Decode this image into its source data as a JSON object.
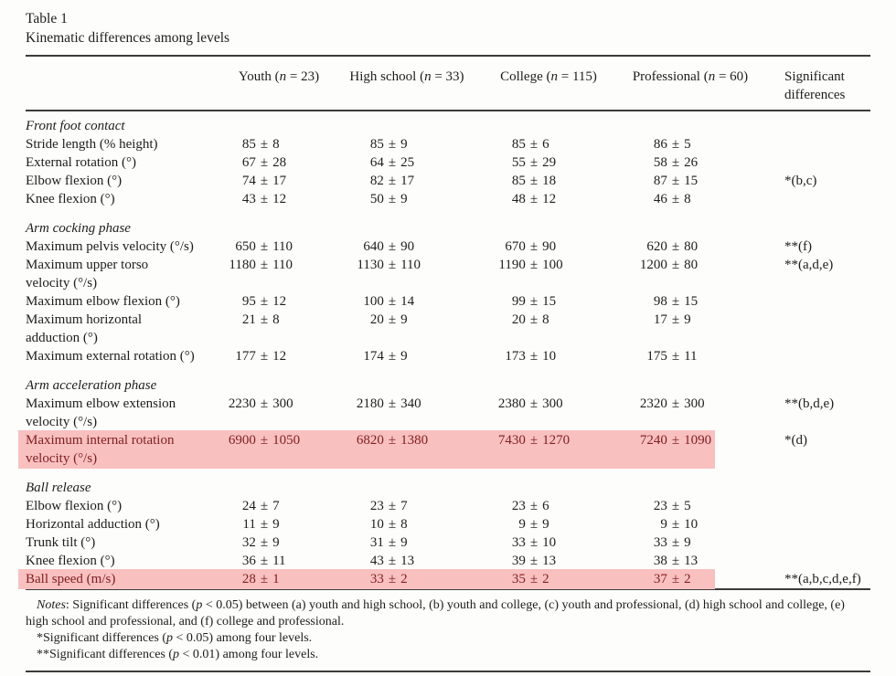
{
  "page": {
    "title_line1": "Table 1",
    "title_line2": "Kinematic differences among levels"
  },
  "colors": {
    "highlight_bg": "#f9c0c0",
    "highlight_text": "#801d1d"
  },
  "table": {
    "plus_minus": "±",
    "columns": [
      [
        {
          "t": "Youth ("
        },
        {
          "t": "n",
          "i": true
        },
        {
          "t": " = 23)"
        }
      ],
      [
        {
          "t": "High school ("
        },
        {
          "t": "n",
          "i": true
        },
        {
          "t": " = 33)"
        }
      ],
      [
        {
          "t": "College ("
        },
        {
          "t": "n",
          "i": true
        },
        {
          "t": " = 115)"
        }
      ],
      [
        {
          "t": "Professional ("
        },
        {
          "t": "n",
          "i": true
        },
        {
          "t": " = 60)"
        }
      ],
      [
        {
          "t": "Significant differences"
        }
      ]
    ],
    "sections": [
      {
        "heading": "Front foot contact",
        "rows": [
          {
            "label": "Stride length (% height)",
            "label2": "",
            "values": [
              [
                "85",
                "8"
              ],
              [
                "85",
                "9"
              ],
              [
                "85",
                "6"
              ],
              [
                "86",
                "5"
              ]
            ],
            "sig": "",
            "highlight": false
          },
          {
            "label": "External rotation (°)",
            "label2": "",
            "values": [
              [
                "67",
                "28"
              ],
              [
                "64",
                "25"
              ],
              [
                "55",
                "29"
              ],
              [
                "58",
                "26"
              ]
            ],
            "sig": "",
            "highlight": false
          },
          {
            "label": "Elbow flexion (°)",
            "label2": "",
            "values": [
              [
                "74",
                "17"
              ],
              [
                "82",
                "17"
              ],
              [
                "85",
                "18"
              ],
              [
                "87",
                "15"
              ]
            ],
            "sig": "*(b,c)",
            "highlight": false
          },
          {
            "label": "Knee flexion (°)",
            "label2": "",
            "values": [
              [
                "43",
                "12"
              ],
              [
                "50",
                "9"
              ],
              [
                "48",
                "12"
              ],
              [
                "46",
                "8"
              ]
            ],
            "sig": "",
            "highlight": false
          }
        ]
      },
      {
        "heading": "Arm cocking phase",
        "rows": [
          {
            "label": "Maximum pelvis velocity (°/s)",
            "label2": "",
            "values": [
              [
                "650",
                "110"
              ],
              [
                "640",
                "90"
              ],
              [
                "670",
                "90"
              ],
              [
                "620",
                "80"
              ]
            ],
            "sig": "**(f)",
            "highlight": false
          },
          {
            "label": "Maximum upper torso",
            "label2": "velocity (°/s)",
            "values": [
              [
                "1180",
                "110"
              ],
              [
                "1130",
                "110"
              ],
              [
                "1190",
                "100"
              ],
              [
                "1200",
                "80"
              ]
            ],
            "sig": "**(a,d,e)",
            "highlight": false
          },
          {
            "label": "Maximum elbow flexion (°)",
            "label2": "",
            "values": [
              [
                "95",
                "12"
              ],
              [
                "100",
                "14"
              ],
              [
                "99",
                "15"
              ],
              [
                "98",
                "15"
              ]
            ],
            "sig": "",
            "highlight": false
          },
          {
            "label": "Maximum horizontal",
            "label2": "adduction (°)",
            "values": [
              [
                "21",
                "8"
              ],
              [
                "20",
                "9"
              ],
              [
                "20",
                "8"
              ],
              [
                "17",
                "9"
              ]
            ],
            "sig": "",
            "highlight": false
          },
          {
            "label": "Maximum external rotation (°)",
            "label2": "",
            "values": [
              [
                "177",
                "12"
              ],
              [
                "174",
                "9"
              ],
              [
                "173",
                "10"
              ],
              [
                "175",
                "11"
              ]
            ],
            "sig": "",
            "highlight": false
          }
        ]
      },
      {
        "heading": "Arm acceleration phase",
        "rows": [
          {
            "label": "Maximum elbow extension",
            "label2": "velocity (°/s)",
            "values": [
              [
                "2230",
                "300"
              ],
              [
                "2180",
                "340"
              ],
              [
                "2380",
                "300"
              ],
              [
                "2320",
                "300"
              ]
            ],
            "sig": "**(b,d,e)",
            "highlight": false
          },
          {
            "label": "Maximum internal rotation",
            "label2": "velocity (°/s)",
            "values": [
              [
                "6900",
                "1050"
              ],
              [
                "6820",
                "1380"
              ],
              [
                "7430",
                "1270"
              ],
              [
                "7240",
                "1090"
              ]
            ],
            "sig": "*(d)",
            "highlight": true
          }
        ]
      },
      {
        "heading": "Ball release",
        "rows": [
          {
            "label": "Elbow flexion (°)",
            "label2": "",
            "values": [
              [
                "24",
                "7"
              ],
              [
                "23",
                "7"
              ],
              [
                "23",
                "6"
              ],
              [
                "23",
                "5"
              ]
            ],
            "sig": "",
            "highlight": false
          },
          {
            "label": "Horizontal adduction (°)",
            "label2": "",
            "values": [
              [
                "11",
                "9"
              ],
              [
                "10",
                "8"
              ],
              [
                "9",
                "9"
              ],
              [
                "9",
                "10"
              ]
            ],
            "sig": "",
            "highlight": false
          },
          {
            "label": "Trunk tilt (°)",
            "label2": "",
            "values": [
              [
                "32",
                "9"
              ],
              [
                "31",
                "9"
              ],
              [
                "33",
                "10"
              ],
              [
                "33",
                "9"
              ]
            ],
            "sig": "",
            "highlight": false
          },
          {
            "label": "Knee flexion (°)",
            "label2": "",
            "values": [
              [
                "36",
                "11"
              ],
              [
                "43",
                "13"
              ],
              [
                "39",
                "13"
              ],
              [
                "38",
                "13"
              ]
            ],
            "sig": "",
            "highlight": false
          },
          {
            "label": "Ball speed (m/s)",
            "label2": "",
            "values": [
              [
                "28",
                "1"
              ],
              [
                "33",
                "2"
              ],
              [
                "35",
                "2"
              ],
              [
                "37",
                "2"
              ]
            ],
            "sig": "**(a,b,c,d,e,f)",
            "highlight": true
          }
        ]
      }
    ]
  },
  "notes": {
    "paragraphs": [
      [
        {
          "t": "Notes",
          "i": true
        },
        {
          "t": ": Significant differences ("
        },
        {
          "t": "p",
          "i": true
        },
        {
          "t": " < 0.05) between (a) youth and high school, (b) youth and college, (c) youth and professional, (d) high school and college, (e) high school and professional, and (f) college and professional."
        }
      ],
      [
        {
          "t": "*Significant differences ("
        },
        {
          "t": "p",
          "i": true
        },
        {
          "t": " < 0.05) among four levels."
        }
      ],
      [
        {
          "t": "**Significant differences ("
        },
        {
          "t": "p",
          "i": true
        },
        {
          "t": " < 0.01) among four levels."
        }
      ]
    ]
  }
}
